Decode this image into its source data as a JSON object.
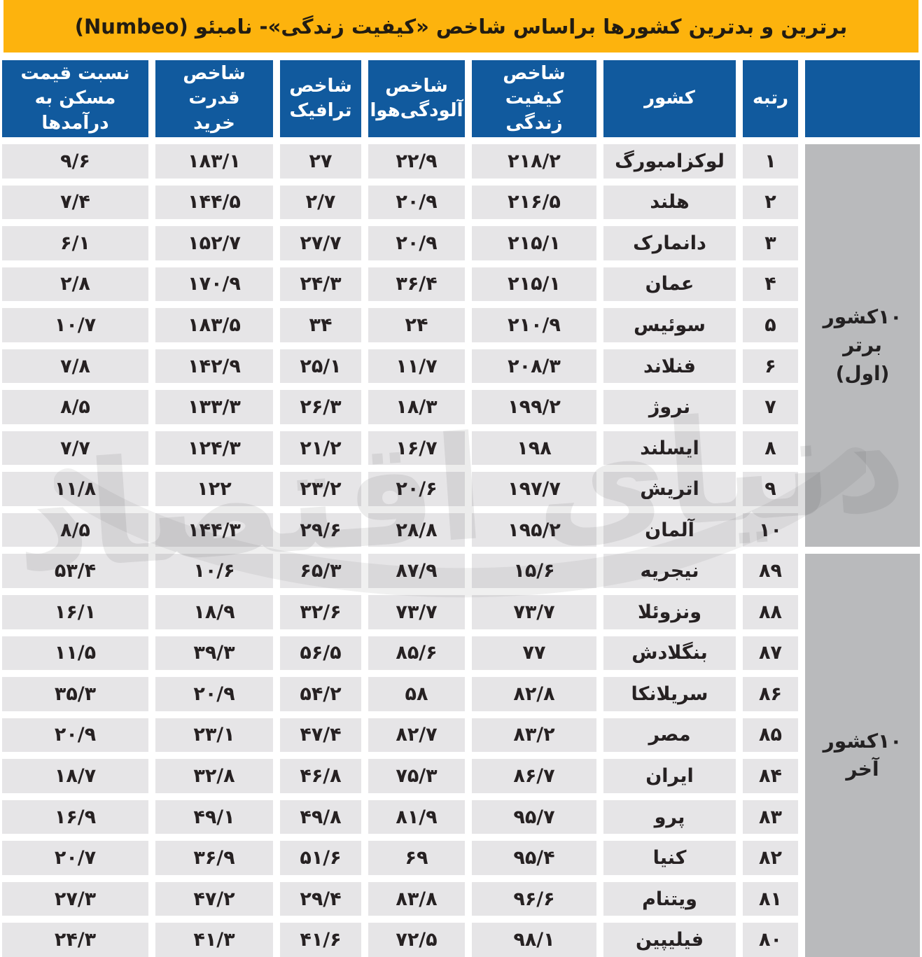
{
  "chart_data": {
    "type": "table",
    "title": "برترین و بدترین کشورها براساس شاخص «کیفیت زندگی»- نامبئو (Numbeo)",
    "columns": [
      {
        "key": "rank",
        "line1": "رتبه",
        "line2": ""
      },
      {
        "key": "country",
        "line1": "کشور",
        "line2": ""
      },
      {
        "key": "quality_of_life_index",
        "line1": "شاخص کیفیت",
        "line2": "زندگی"
      },
      {
        "key": "air_pollution_index",
        "line1": "شاخص",
        "line2": "آلودگی‌هوا"
      },
      {
        "key": "traffic_index",
        "line1": "شاخص",
        "line2": "ترافیک"
      },
      {
        "key": "purchasing_power_index",
        "line1": "شاخص قدرت",
        "line2": "خرید"
      },
      {
        "key": "house_price_to_income",
        "line1": "نسبت قیمت",
        "line2": "مسکن به درآمدها"
      }
    ],
    "value_columns_order": [
      "quality_of_life_index",
      "air_pollution_index",
      "traffic_index",
      "purchasing_power_index",
      "house_price_to_income"
    ],
    "groups": [
      {
        "label": "۱۰کشور برتر",
        "label_secondary": "(اول)",
        "rows": [
          {
            "rank": 1,
            "rank_fa": "۱",
            "country": "لوکزامبورگ",
            "values": [
              218.2,
              22.9,
              27,
              183.1,
              9.6
            ],
            "values_fa": [
              "۲۱۸/۲",
              "۲۲/۹",
              "۲۷",
              "۱۸۳/۱",
              "۹/۶"
            ]
          },
          {
            "rank": 2,
            "rank_fa": "۲",
            "country": "هلند",
            "values": [
              216.5,
              20.9,
              2.7,
              144.5,
              7.4
            ],
            "values_fa": [
              "۲۱۶/۵",
              "۲۰/۹",
              "۲/۷",
              "۱۴۴/۵",
              "۷/۴"
            ]
          },
          {
            "rank": 3,
            "rank_fa": "۳",
            "country": "دانمارک",
            "values": [
              215.1,
              20.9,
              27.7,
              152.7,
              6.1
            ],
            "values_fa": [
              "۲۱۵/۱",
              "۲۰/۹",
              "۲۷/۷",
              "۱۵۲/۷",
              "۶/۱"
            ]
          },
          {
            "rank": 4,
            "rank_fa": "۴",
            "country": "عمان",
            "values": [
              215.1,
              36.4,
              24.3,
              170.9,
              2.8
            ],
            "values_fa": [
              "۲۱۵/۱",
              "۳۶/۴",
              "۲۴/۳",
              "۱۷۰/۹",
              "۲/۸"
            ]
          },
          {
            "rank": 5,
            "rank_fa": "۵",
            "country": "سوئیس",
            "values": [
              210.9,
              24,
              34,
              183.5,
              10.7
            ],
            "values_fa": [
              "۲۱۰/۹",
              "۲۴",
              "۳۴",
              "۱۸۳/۵",
              "۱۰/۷"
            ]
          },
          {
            "rank": 6,
            "rank_fa": "۶",
            "country": "فنلاند",
            "values": [
              208.3,
              11.7,
              25.1,
              142.9,
              7.8
            ],
            "values_fa": [
              "۲۰۸/۳",
              "۱۱/۷",
              "۲۵/۱",
              "۱۴۲/۹",
              "۷/۸"
            ]
          },
          {
            "rank": 7,
            "rank_fa": "۷",
            "country": "نروژ",
            "values": [
              199.2,
              18.3,
              26.3,
              133.3,
              8.5
            ],
            "values_fa": [
              "۱۹۹/۲",
              "۱۸/۳",
              "۲۶/۳",
              "۱۳۳/۳",
              "۸/۵"
            ]
          },
          {
            "rank": 8,
            "rank_fa": "۸",
            "country": "ایسلند",
            "values": [
              198,
              16.7,
              21.2,
              124.3,
              7.7
            ],
            "values_fa": [
              "۱۹۸",
              "۱۶/۷",
              "۲۱/۲",
              "۱۲۴/۳",
              "۷/۷"
            ]
          },
          {
            "rank": 9,
            "rank_fa": "۹",
            "country": "اتریش",
            "values": [
              197.7,
              20.6,
              23.2,
              122,
              11.8
            ],
            "values_fa": [
              "۱۹۷/۷",
              "۲۰/۶",
              "۲۳/۲",
              "۱۲۲",
              "۱۱/۸"
            ]
          },
          {
            "rank": 10,
            "rank_fa": "۱۰",
            "country": "آلمان",
            "values": [
              195.2,
              28.8,
              29.6,
              144.3,
              8.5
            ],
            "values_fa": [
              "۱۹۵/۲",
              "۲۸/۸",
              "۲۹/۶",
              "۱۴۴/۳",
              "۸/۵"
            ]
          }
        ]
      },
      {
        "label": "۱۰کشور آخر",
        "label_secondary": "",
        "rows": [
          {
            "rank": 89,
            "rank_fa": "۸۹",
            "country": "نیجریه",
            "values": [
              15.6,
              87.9,
              65.3,
              10.6,
              53.4
            ],
            "values_fa": [
              "۱۵/۶",
              "۸۷/۹",
              "۶۵/۳",
              "۱۰/۶",
              "۵۳/۴"
            ]
          },
          {
            "rank": 88,
            "rank_fa": "۸۸",
            "country": "ونزوئلا",
            "values": [
              73.7,
              73.7,
              32.6,
              18.9,
              16.1
            ],
            "values_fa": [
              "۷۳/۷",
              "۷۳/۷",
              "۳۲/۶",
              "۱۸/۹",
              "۱۶/۱"
            ]
          },
          {
            "rank": 87,
            "rank_fa": "۸۷",
            "country": "بنگلادش",
            "values": [
              77,
              85.6,
              56.5,
              39.3,
              11.5
            ],
            "values_fa": [
              "۷۷",
              "۸۵/۶",
              "۵۶/۵",
              "۳۹/۳",
              "۱۱/۵"
            ]
          },
          {
            "rank": 86,
            "rank_fa": "۸۶",
            "country": "سریلانکا",
            "values": [
              82.8,
              58,
              54.2,
              20.9,
              35.3
            ],
            "values_fa": [
              "۸۲/۸",
              "۵۸",
              "۵۴/۲",
              "۲۰/۹",
              "۳۵/۳"
            ]
          },
          {
            "rank": 85,
            "rank_fa": "۸۵",
            "country": "مصر",
            "values": [
              83.2,
              82.7,
              47.4,
              23.1,
              20.9
            ],
            "values_fa": [
              "۸۳/۲",
              "۸۲/۷",
              "۴۷/۴",
              "۲۳/۱",
              "۲۰/۹"
            ]
          },
          {
            "rank": 84,
            "rank_fa": "۸۴",
            "country": "ایران",
            "values": [
              86.7,
              75.3,
              46.8,
              32.8,
              18.7
            ],
            "values_fa": [
              "۸۶/۷",
              "۷۵/۳",
              "۴۶/۸",
              "۳۲/۸",
              "۱۸/۷"
            ]
          },
          {
            "rank": 83,
            "rank_fa": "۸۳",
            "country": "پرو",
            "values": [
              95.7,
              81.9,
              49.8,
              49.1,
              16.9
            ],
            "values_fa": [
              "۹۵/۷",
              "۸۱/۹",
              "۴۹/۸",
              "۴۹/۱",
              "۱۶/۹"
            ]
          },
          {
            "rank": 82,
            "rank_fa": "۸۲",
            "country": "کنیا",
            "values": [
              95.4,
              69,
              51.6,
              36.9,
              20.7
            ],
            "values_fa": [
              "۹۵/۴",
              "۶۹",
              "۵۱/۶",
              "۳۶/۹",
              "۲۰/۷"
            ]
          },
          {
            "rank": 81,
            "rank_fa": "۸۱",
            "country": "ویتنام",
            "values": [
              96.6,
              83.8,
              29.4,
              47.2,
              27.3
            ],
            "values_fa": [
              "۹۶/۶",
              "۸۳/۸",
              "۲۹/۴",
              "۴۷/۲",
              "۲۷/۳"
            ]
          },
          {
            "rank": 80,
            "rank_fa": "۸۰",
            "country": "فیلیپین",
            "values": [
              98.1,
              72.5,
              41.6,
              41.3,
              24.3
            ],
            "values_fa": [
              "۹۸/۱",
              "۷۲/۵",
              "۴۱/۶",
              "۴۱/۳",
              "۲۴/۳"
            ]
          }
        ]
      }
    ]
  },
  "watermark_text": "دنیای اقتصاد",
  "colors": {
    "banner_background": "#FDB30D",
    "header_background": "#115A9E",
    "header_text": "#FFFFFF",
    "cell_background": "#E6E5E7",
    "group_sidebar_background": "#B9BABC",
    "cell_text": "#262122"
  }
}
